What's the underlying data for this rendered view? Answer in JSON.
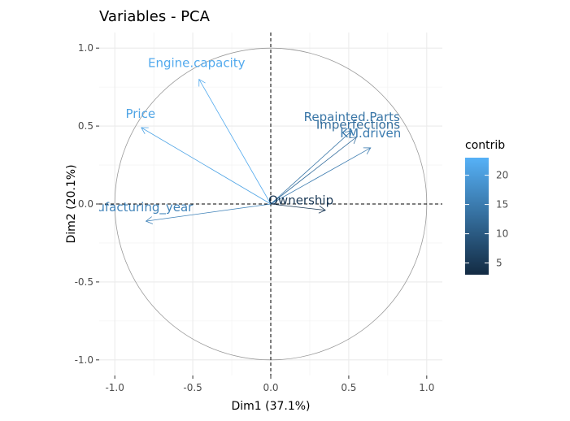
{
  "chart_data": {
    "type": "scatter",
    "title": "Variables - PCA",
    "xlabel": "Dim1 (37.1%)",
    "ylabel": "Dim2 (20.1%)",
    "xlim": [
      -1.1,
      1.1
    ],
    "ylim": [
      -1.1,
      1.1
    ],
    "xticks": [
      "-1.0",
      "-0.5",
      "0.0",
      "0.5",
      "1.0"
    ],
    "yticks": [
      "-1.0",
      "-0.5",
      "0.0",
      "0.5",
      "1.0"
    ],
    "grid": true,
    "correlation_circle": true,
    "legend": {
      "title": "contrib",
      "position": "right",
      "ticks": [
        "5",
        "10",
        "15",
        "20"
      ],
      "range": [
        3,
        23
      ],
      "low_color": "#132b43",
      "high_color": "#56b1f7"
    },
    "variables": [
      {
        "name": "Engine.capacity",
        "x": -0.46,
        "y": 0.8,
        "contrib": 22
      },
      {
        "name": "Price",
        "x": -0.83,
        "y": 0.49,
        "contrib": 21
      },
      {
        "name": "Repainted.Parts",
        "x": 0.52,
        "y": 0.47,
        "contrib": 14
      },
      {
        "name": "Imperfections",
        "x": 0.55,
        "y": 0.43,
        "contrib": 13
      },
      {
        "name": "KM.driven",
        "x": 0.64,
        "y": 0.36,
        "contrib": 15
      },
      {
        "name": "Ownership",
        "x": 0.35,
        "y": -0.04,
        "contrib": 5
      },
      {
        "name": "Manufacturing_year",
        "x": -0.8,
        "y": -0.11,
        "contrib": 16
      }
    ]
  }
}
